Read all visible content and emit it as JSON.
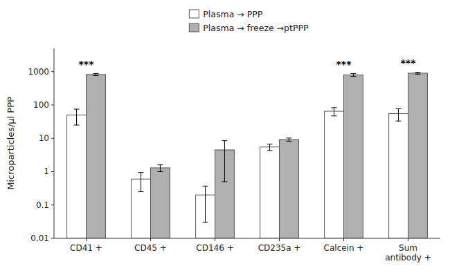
{
  "chart_data": {
    "type": "bar",
    "categories": [
      "CD41 +",
      "CD45 +",
      "CD146 +",
      "CD235a +",
      "Calcein +",
      "Sum\nantibody +"
    ],
    "series": [
      {
        "name": "Plasma → PPP",
        "color": "white",
        "values": [
          50,
          0.6,
          0.2,
          5.5,
          65,
          55
        ],
        "errors_upper": [
          25,
          0.35,
          0.17,
          1.2,
          18,
          22
        ],
        "errors_lower": [
          25,
          0.35,
          0.17,
          1.2,
          18,
          22
        ]
      },
      {
        "name": "Plasma → freeze →ptPPP",
        "color": "#b0b0b0",
        "values": [
          820,
          1.3,
          4.5,
          9.2,
          800,
          900
        ],
        "errors_upper": [
          60,
          0.3,
          4.0,
          1.0,
          80,
          60
        ],
        "errors_lower": [
          60,
          0.3,
          4.0,
          1.0,
          80,
          60
        ]
      }
    ],
    "annotations": [
      {
        "text": "***",
        "category": "CD41 +"
      },
      {
        "text": "***",
        "category": "Calcein +"
      },
      {
        "text": "***",
        "category": "Sum\nantibody +"
      }
    ],
    "ylabel": "Microparticles/µl PPP",
    "log": "y",
    "ylim": [
      0.01,
      5000
    ],
    "yticks": [
      0.01,
      0.1,
      1,
      10,
      100,
      1000
    ],
    "grid": false,
    "legend": "top"
  }
}
